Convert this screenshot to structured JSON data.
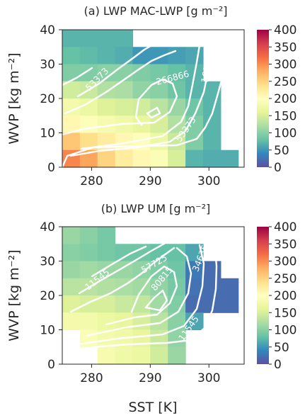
{
  "figure": {
    "xlabel": "SST [K]"
  },
  "chart_data": [
    {
      "type": "heatmap",
      "title": "(a) LWP MAC-LWP [g m⁻²]",
      "xlabel": "",
      "ylabel": "WVP [kg m⁻²]",
      "xlim": [
        275,
        306
      ],
      "ylim": [
        0,
        40
      ],
      "x_ticks": [
        "280",
        "290",
        "300"
      ],
      "y_ticks": [
        "0",
        "10",
        "20",
        "30",
        "40"
      ],
      "x_bin_edges": [
        275,
        278,
        281,
        284,
        287,
        290,
        293,
        296,
        299,
        302,
        305
      ],
      "y_bin_edges": [
        0,
        5,
        10,
        15,
        20,
        25,
        30,
        35,
        40
      ],
      "cells": [
        [
          70,
          70,
          70,
          70,
          null,
          null,
          null,
          null,
          null,
          null
        ],
        [
          80,
          75,
          70,
          65,
          50,
          50,
          55,
          60,
          null,
          null
        ],
        [
          95,
          95,
          100,
          100,
          95,
          90,
          80,
          70,
          null,
          null
        ],
        [
          145,
          140,
          125,
          120,
          105,
          100,
          85,
          70,
          70,
          null
        ],
        [
          180,
          170,
          155,
          150,
          145,
          130,
          110,
          85,
          70,
          null
        ],
        [
          210,
          195,
          185,
          175,
          165,
          150,
          125,
          95,
          70,
          null
        ],
        [
          260,
          240,
          225,
          210,
          195,
          170,
          140,
          95,
          70,
          null
        ],
        [
          305,
          285,
          250,
          225,
          210,
          190,
          150,
          70,
          65,
          65
        ]
      ],
      "contour_labels": [
        "53373",
        "266866",
        "160119",
        "53373"
      ],
      "colorbar": {
        "vmin": 0,
        "vmax": 400,
        "ticks": [
          "0",
          "50",
          "100",
          "150",
          "200",
          "250",
          "300",
          "350",
          "400"
        ],
        "cmap": "Spectral_r"
      }
    },
    {
      "type": "heatmap",
      "title": "(b) LWP UM [g m⁻²]",
      "xlabel": "SST [K]",
      "ylabel": "WVP [kg m⁻²]",
      "xlim": [
        275,
        306
      ],
      "ylim": [
        0,
        40
      ],
      "x_ticks": [
        "280",
        "290",
        "300"
      ],
      "y_ticks": [
        "0",
        "10",
        "20",
        "30",
        "40"
      ],
      "x_bin_edges": [
        275,
        278,
        281,
        284,
        287,
        290,
        293,
        296,
        299,
        302,
        305
      ],
      "y_bin_edges": [
        0,
        5,
        10,
        15,
        20,
        25,
        30,
        35,
        40
      ],
      "cells": [
        [
          110,
          100,
          90,
          null,
          null,
          null,
          null,
          null,
          null,
          null
        ],
        [
          100,
          95,
          90,
          85,
          85,
          80,
          80,
          60,
          null,
          null
        ],
        [
          110,
          115,
          110,
          110,
          105,
          95,
          85,
          30,
          20,
          null
        ],
        [
          130,
          130,
          125,
          120,
          115,
          105,
          90,
          25,
          20,
          20
        ],
        [
          155,
          150,
          150,
          140,
          135,
          115,
          95,
          20,
          20,
          20
        ],
        [
          180,
          180,
          170,
          165,
          150,
          130,
          100,
          60,
          null,
          null
        ],
        [
          null,
          190,
          180,
          175,
          165,
          140,
          105,
          null,
          null,
          null
        ],
        [
          null,
          null,
          185,
          175,
          170,
          145,
          110,
          null,
          null,
          null
        ]
      ],
      "contour_labels": [
        "11545",
        "57725",
        "80815",
        "34635",
        "11545"
      ],
      "colorbar": {
        "vmin": 0,
        "vmax": 400,
        "ticks": [
          "0",
          "50",
          "100",
          "150",
          "200",
          "250",
          "300",
          "350",
          "400"
        ],
        "cmap": "Spectral_r"
      }
    }
  ]
}
